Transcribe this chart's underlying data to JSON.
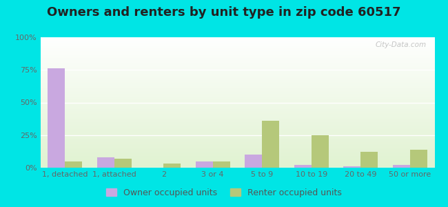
{
  "title": "Owners and renters by unit type in zip code 60517",
  "categories": [
    "1, detached",
    "1, attached",
    "2",
    "3 or 4",
    "5 to 9",
    "10 to 19",
    "20 to 49",
    "50 or more"
  ],
  "owner_values": [
    76,
    8,
    0,
    5,
    10,
    2,
    1,
    2
  ],
  "renter_values": [
    5,
    7,
    3,
    5,
    36,
    25,
    12,
    14
  ],
  "owner_color": "#c9a8e0",
  "renter_color": "#b5c87a",
  "background_color": "#00e5e5",
  "title_fontsize": 13,
  "tick_fontsize": 8,
  "legend_fontsize": 9,
  "ylim": [
    0,
    100
  ],
  "yticks": [
    0,
    25,
    50,
    75,
    100
  ],
  "ytick_labels": [
    "0%",
    "25%",
    "50%",
    "75%",
    "100%"
  ],
  "bar_width": 0.35,
  "watermark": "City-Data.com"
}
